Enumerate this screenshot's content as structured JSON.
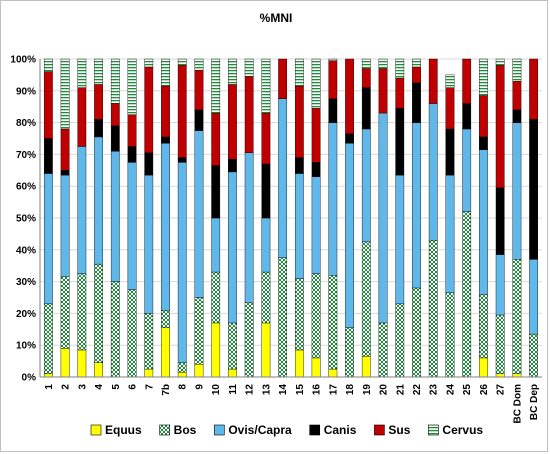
{
  "chart_data": {
    "type": "bar",
    "stacked": true,
    "title": "%MNI",
    "xlabel": "",
    "ylabel": "",
    "ylim": [
      0,
      100
    ],
    "y_tick_values": [
      0,
      10,
      20,
      30,
      40,
      50,
      60,
      70,
      80,
      90,
      100
    ],
    "y_tick_labels": [
      "0%",
      "10%",
      "20%",
      "30%",
      "40%",
      "50%",
      "60%",
      "70%",
      "80%",
      "90%",
      "100%"
    ],
    "grid": true,
    "legend_position": "bottom",
    "categories": [
      "1",
      "2",
      "3",
      "4",
      "5",
      "6",
      "7",
      "7b",
      "8",
      "9",
      "10",
      "11",
      "12",
      "13",
      "14",
      "15",
      "16",
      "17",
      "18",
      "19",
      "20",
      "21",
      "22",
      "23",
      "24",
      "25",
      "26",
      "27",
      "BC Dom",
      "BC Dep"
    ],
    "series": [
      {
        "name": "Equus",
        "color": "#ffff00",
        "pattern": "solid",
        "values": [
          1,
          9,
          8.5,
          4.5,
          0,
          0,
          2.5,
          15.5,
          1.5,
          4,
          17,
          2.5,
          0,
          17,
          0,
          8.5,
          6,
          2.5,
          0,
          6.5,
          0,
          0,
          0,
          0,
          0,
          0,
          6,
          1,
          1,
          0
        ]
      },
      {
        "name": "Bos",
        "color": "#d6f0d6",
        "pattern": "checker",
        "values": [
          22,
          22.5,
          24,
          31,
          30,
          27.5,
          17.5,
          5.5,
          3,
          21,
          16,
          14.5,
          23.5,
          16,
          37.5,
          22.5,
          26.5,
          29.5,
          15.5,
          36,
          17,
          23,
          28,
          43,
          26.5,
          52,
          20,
          18.5,
          36,
          13.5
        ]
      },
      {
        "name": "Ovis/Capra",
        "color": "#5fb7ea",
        "pattern": "solid",
        "values": [
          41,
          32,
          40,
          40,
          41,
          40,
          43.5,
          52.5,
          63,
          52.5,
          17,
          47.5,
          47,
          17,
          50,
          33,
          30.5,
          48,
          58,
          35.5,
          66,
          40.5,
          52,
          43,
          37,
          26,
          45.5,
          19,
          43,
          23.5
        ]
      },
      {
        "name": "Canis",
        "color": "#000000",
        "pattern": "solid",
        "values": [
          11,
          1.5,
          0,
          5.5,
          8,
          5,
          7,
          2,
          1.5,
          6.5,
          16.5,
          4,
          0,
          17,
          0,
          5,
          4.5,
          7.5,
          3,
          13,
          0,
          21,
          12.5,
          0,
          14.5,
          8,
          4,
          21,
          4,
          44
        ]
      },
      {
        "name": "Sus",
        "color": "#c00000",
        "pattern": "solid",
        "values": [
          21,
          13,
          18.5,
          11,
          7,
          10,
          27,
          16,
          29,
          12.5,
          16.5,
          23.5,
          24,
          16,
          12.5,
          22.5,
          17,
          12,
          23.5,
          6,
          14,
          9.5,
          5,
          14,
          13,
          14,
          13,
          38.5,
          9,
          19
        ]
      },
      {
        "name": "Cervus",
        "color": "#d6f0d6",
        "pattern": "hstripe",
        "values": [
          4,
          22,
          9,
          8,
          14,
          17.5,
          2.5,
          8.5,
          2,
          3.5,
          17,
          8,
          5.5,
          17,
          0,
          8.5,
          15.5,
          0.5,
          0,
          3,
          3,
          6,
          2.5,
          0,
          4,
          0,
          11.5,
          2,
          7,
          0
        ]
      }
    ]
  }
}
